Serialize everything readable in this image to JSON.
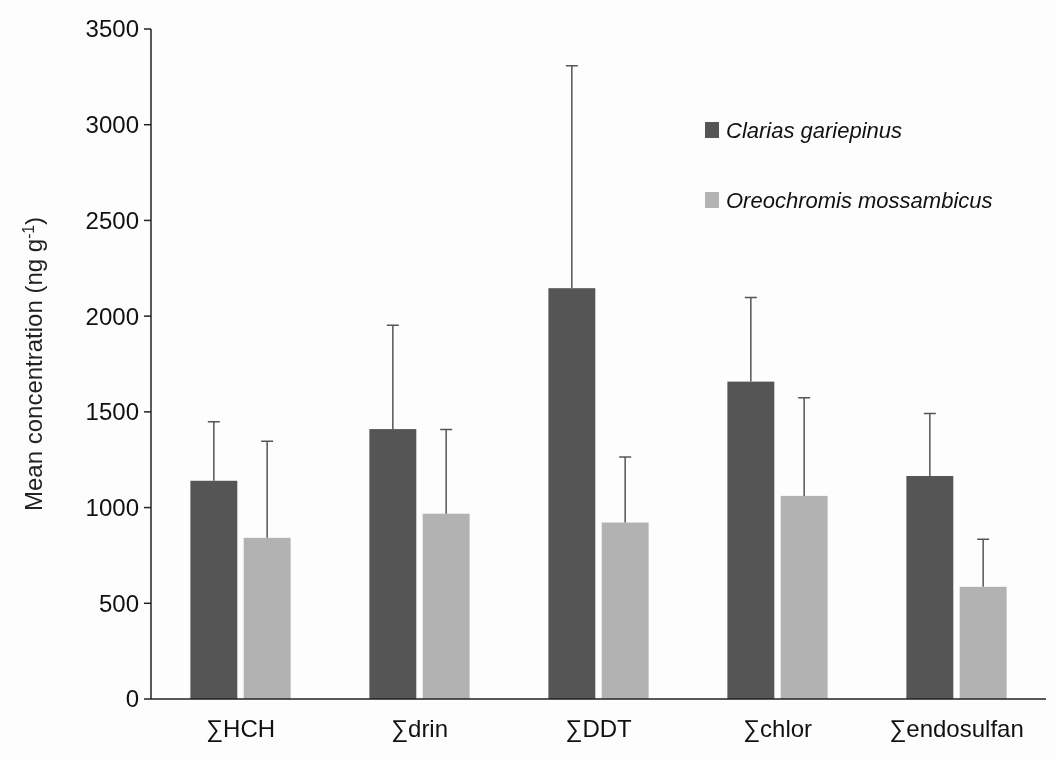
{
  "chart_data": {
    "type": "bar",
    "ylabel": "Mean concentration (ng g$^{-1}$)",
    "categories": [
      "∑HCH",
      "∑drin",
      "∑DDT",
      "∑chlor",
      "∑endosulfan"
    ],
    "series": [
      {
        "name": "Clarias gariepinus",
        "color": "#555555",
        "values": [
          1140,
          1410,
          2146,
          1658,
          1165
        ],
        "errors": [
          [
            1140,
            1448
          ],
          [
            1410,
            1953
          ],
          [
            2146,
            3308
          ],
          [
            1658,
            2098
          ],
          [
            1165,
            1491
          ]
        ]
      },
      {
        "name": "Oreochromis mossambicus",
        "color": "#b2b2b2",
        "values": [
          842,
          968,
          922,
          1061,
          586
        ],
        "errors": [
          [
            842,
            1347
          ],
          [
            968,
            1408
          ],
          [
            922,
            1264
          ],
          [
            1061,
            1574
          ],
          [
            586,
            834
          ]
        ]
      }
    ],
    "ylim": [
      0,
      3500
    ],
    "yticks": [
      0,
      500,
      1000,
      1500,
      2000,
      2500,
      3000,
      3500
    ],
    "grid": false,
    "legend": "top right"
  }
}
